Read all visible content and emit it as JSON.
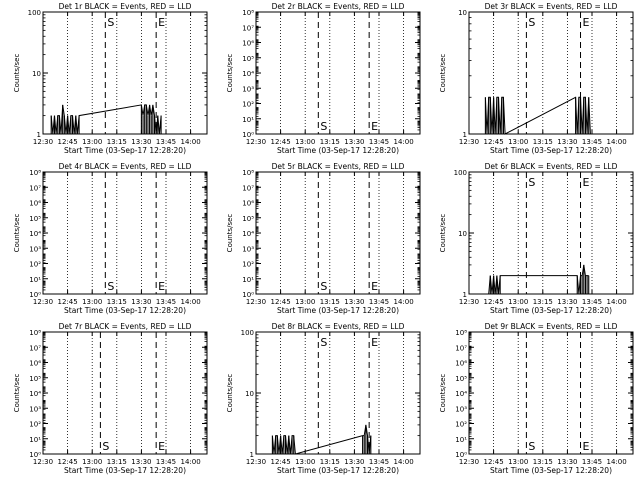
{
  "x_ticks": [
    "12:30",
    "12:45",
    "13:00",
    "13:15",
    "13:30",
    "13:45",
    "14:00"
  ],
  "x_label": "Start Time (03-Sep-17 12:28:20)",
  "y_label": "Counts/sec",
  "marker_labels": {
    "start": "S",
    "end": "E"
  },
  "chart_data": [
    {
      "type": "line",
      "title": "Det 1r BLACK = Events, RED = LLD",
      "xlim": [
        "12:30",
        "14:10"
      ],
      "yscale": "log",
      "ylim": [
        1,
        100
      ],
      "ytick_labels": [
        "100",
        "10",
        "1"
      ],
      "s_time": "13:08",
      "e_time": "13:39",
      "series": [
        {
          "name": "Events",
          "color": "#000000",
          "x": [
            "12:35",
            "12:36",
            "12:37",
            "12:38",
            "12:39",
            "12:40",
            "12:41",
            "12:42",
            "12:43",
            "12:44",
            "12:45",
            "12:46",
            "12:47",
            "12:48",
            "12:49",
            "12:50",
            "12:51",
            "12:52",
            "13:30",
            "13:31",
            "13:32",
            "13:33",
            "13:34",
            "13:35",
            "13:36",
            "13:37",
            "13:38",
            "13:39",
            "13:40",
            "13:41",
            "13:42"
          ],
          "y": [
            2,
            1,
            2,
            1,
            2,
            2,
            1,
            3,
            2,
            1,
            2,
            1,
            2,
            2,
            1,
            2,
            1,
            2,
            3,
            2,
            3,
            3,
            2,
            3,
            2,
            3,
            2,
            1,
            2,
            1,
            2
          ]
        },
        {
          "name": "LLD",
          "color": "#ff0000",
          "x": [],
          "y": []
        }
      ]
    },
    {
      "type": "line",
      "title": "Det 2r BLACK = Events, RED = LLD",
      "xlim": [
        "12:30",
        "14:10"
      ],
      "yscale": "log",
      "ylim": [
        1,
        1000000000
      ],
      "ytick_labels": [
        "10⁸",
        "10⁷",
        "10⁶",
        "10⁵",
        "10⁴",
        "10³",
        "10²",
        "10¹",
        "10⁰"
      ],
      "s_time": "13:08",
      "e_time": "13:39",
      "series": [
        {
          "name": "Events",
          "color": "#000000",
          "x": [],
          "y": []
        },
        {
          "name": "LLD",
          "color": "#ff0000",
          "x": [],
          "y": []
        }
      ]
    },
    {
      "type": "line",
      "title": "Det 3r BLACK = Events, RED = LLD",
      "xlim": [
        "12:30",
        "14:10"
      ],
      "yscale": "log",
      "ylim": [
        1,
        10
      ],
      "ytick_labels": [
        "10",
        "1"
      ],
      "s_time": "13:05",
      "e_time": "13:38",
      "series": [
        {
          "name": "Events",
          "color": "#000000",
          "x": [
            "12:40",
            "12:41",
            "12:42",
            "12:43",
            "12:44",
            "12:45",
            "12:46",
            "12:47",
            "12:48",
            "12:49",
            "12:50",
            "12:51",
            "12:52",
            "13:35",
            "13:36",
            "13:37",
            "13:38",
            "13:39",
            "13:40",
            "13:41",
            "13:42",
            "13:43",
            "13:44"
          ],
          "y": [
            2,
            1,
            2,
            2,
            1,
            2,
            1,
            2,
            2,
            1,
            2,
            2,
            1,
            2,
            1,
            2,
            2,
            1,
            2,
            2,
            1,
            2,
            1
          ]
        },
        {
          "name": "LLD",
          "color": "#ff0000",
          "x": [],
          "y": []
        }
      ]
    },
    {
      "type": "line",
      "title": "Det 4r BLACK = Events, RED = LLD",
      "xlim": [
        "12:30",
        "14:10"
      ],
      "yscale": "log",
      "ylim": [
        1,
        1000000000
      ],
      "ytick_labels": [
        "10⁸",
        "10⁷",
        "10⁶",
        "10⁵",
        "10⁴",
        "10³",
        "10²",
        "10¹",
        "10⁰"
      ],
      "s_time": "13:08",
      "e_time": "13:39",
      "series": [
        {
          "name": "Events",
          "color": "#000000",
          "x": [],
          "y": []
        },
        {
          "name": "LLD",
          "color": "#ff0000",
          "x": [],
          "y": []
        }
      ]
    },
    {
      "type": "line",
      "title": "Det 5r BLACK = Events, RED = LLD",
      "xlim": [
        "12:30",
        "14:10"
      ],
      "yscale": "log",
      "ylim": [
        1,
        1000000000
      ],
      "ytick_labels": [
        "10⁸",
        "10⁷",
        "10⁶",
        "10⁵",
        "10⁴",
        "10³",
        "10²",
        "10¹",
        "10⁰"
      ],
      "s_time": "13:08",
      "e_time": "13:39",
      "series": [
        {
          "name": "Events",
          "color": "#000000",
          "x": [],
          "y": []
        },
        {
          "name": "LLD",
          "color": "#ff0000",
          "x": [],
          "y": []
        }
      ]
    },
    {
      "type": "line",
      "title": "Det 6r BLACK = Events, RED = LLD",
      "xlim": [
        "12:30",
        "14:10"
      ],
      "yscale": "log",
      "ylim": [
        1,
        100
      ],
      "ytick_labels": [
        "100",
        "10",
        "1"
      ],
      "s_time": "13:05",
      "e_time": "13:38",
      "series": [
        {
          "name": "Events",
          "color": "#000000",
          "x": [
            "12:42",
            "12:43",
            "12:44",
            "12:45",
            "12:46",
            "12:47",
            "12:48",
            "12:49",
            "13:36",
            "13:37",
            "13:38",
            "13:39",
            "13:40",
            "13:41",
            "13:42",
            "13:43"
          ],
          "y": [
            1,
            2,
            1,
            2,
            1,
            2,
            1,
            2,
            2,
            1,
            2,
            2,
            3,
            2,
            2,
            2
          ]
        },
        {
          "name": "LLD",
          "color": "#ff0000",
          "x": [],
          "y": []
        }
      ]
    },
    {
      "type": "line",
      "title": "Det 7r BLACK = Events, RED = LLD",
      "xlim": [
        "12:30",
        "14:10"
      ],
      "yscale": "log",
      "ylim": [
        1,
        1000000000
      ],
      "ytick_labels": [
        "10⁸",
        "10⁷",
        "10⁶",
        "10⁵",
        "10⁴",
        "10³",
        "10²",
        "10¹",
        "10⁰"
      ],
      "s_time": "13:05",
      "e_time": "13:39",
      "series": [
        {
          "name": "Events",
          "color": "#000000",
          "x": [],
          "y": []
        },
        {
          "name": "LLD",
          "color": "#ff0000",
          "x": [],
          "y": []
        }
      ]
    },
    {
      "type": "line",
      "title": "Det 8r BLACK = Events, RED = LLD",
      "xlim": [
        "12:30",
        "14:10"
      ],
      "yscale": "log",
      "ylim": [
        1,
        100
      ],
      "ytick_labels": [
        "100",
        "10",
        "1"
      ],
      "s_time": "13:08",
      "e_time": "13:39",
      "series": [
        {
          "name": "Events",
          "color": "#000000",
          "x": [
            "12:40",
            "12:41",
            "12:42",
            "12:43",
            "12:44",
            "12:45",
            "12:46",
            "12:47",
            "12:48",
            "12:49",
            "12:50",
            "12:51",
            "12:52",
            "12:53",
            "12:54",
            "13:35",
            "13:36",
            "13:37",
            "13:38",
            "13:39",
            "13:40"
          ],
          "y": [
            2,
            1,
            2,
            2,
            1,
            2,
            1,
            2,
            2,
            1,
            2,
            1,
            2,
            2,
            1,
            2,
            2,
            3,
            2,
            1,
            2
          ]
        },
        {
          "name": "LLD",
          "color": "#ff0000",
          "x": [],
          "y": []
        }
      ]
    },
    {
      "type": "line",
      "title": "Det 9r BLACK = Events, RED = LLD",
      "xlim": [
        "12:30",
        "14:10"
      ],
      "yscale": "log",
      "ylim": [
        1,
        1000000000
      ],
      "ytick_labels": [
        "10⁸",
        "10⁷",
        "10⁶",
        "10⁵",
        "10⁴",
        "10³",
        "10²",
        "10¹",
        "10⁰"
      ],
      "s_time": "13:05",
      "e_time": "13:38",
      "series": [
        {
          "name": "Events",
          "color": "#000000",
          "x": [],
          "y": []
        },
        {
          "name": "LLD",
          "color": "#ff0000",
          "x": [],
          "y": []
        }
      ]
    }
  ]
}
